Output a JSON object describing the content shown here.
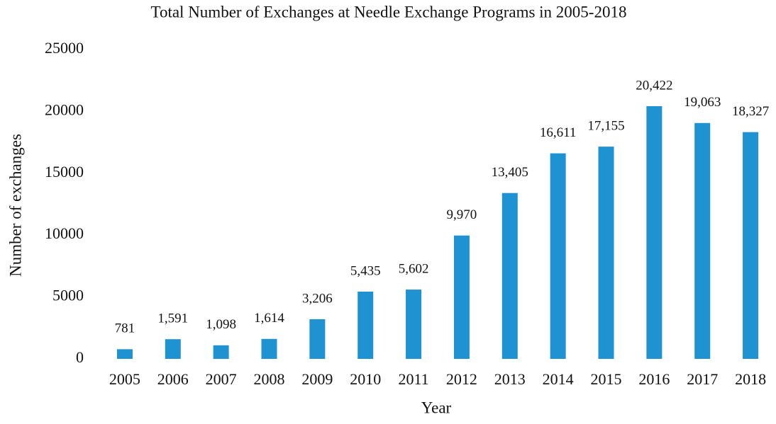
{
  "chart_data": {
    "type": "bar",
    "title": "Total Number of Exchanges at Needle Exchange Programs in 2005-2018",
    "x_label": "Year",
    "y_label": "Number of exchanges",
    "categories": [
      "2005",
      "2006",
      "2007",
      "2008",
      "2009",
      "2010",
      "2011",
      "2012",
      "2013",
      "2014",
      "2015",
      "2016",
      "2017",
      "2018"
    ],
    "values": [
      781,
      1591,
      1098,
      1614,
      3206,
      5435,
      5602,
      9970,
      13405,
      16611,
      17155,
      20422,
      19063,
      18327
    ],
    "value_labels": [
      "781",
      "1,591",
      "1,098",
      "1,614",
      "3,206",
      "5,435",
      "5,602",
      "9,970",
      "13,405",
      "16,611",
      "17,155",
      "20,422",
      "19,063",
      "18,327"
    ],
    "color": "#1f93d1",
    "ylim": [
      0,
      25000
    ],
    "yticks": [
      0,
      5000,
      10000,
      15000,
      20000,
      25000
    ],
    "grid": false
  }
}
